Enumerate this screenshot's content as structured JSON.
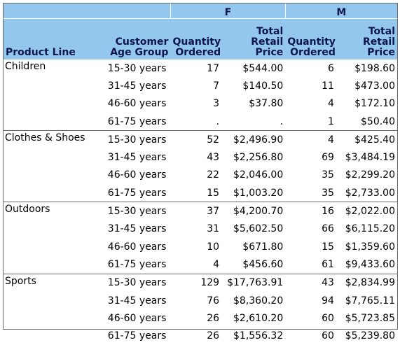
{
  "groups": {
    "female": "F",
    "male": "M"
  },
  "headers": {
    "product_line": "Product Line",
    "age_group_1": "Customer",
    "age_group_2": "Age Group",
    "qty_1": "Quantity",
    "qty_2": "Ordered",
    "price_1": "Total",
    "price_2": "Retail",
    "price_3": "Price"
  },
  "rows": [
    {
      "product": "Children",
      "age": "15-30 years",
      "f_qty": "17",
      "f_price": "$544.00",
      "m_qty": "6",
      "m_price": "$198.60"
    },
    {
      "product": "",
      "age": "31-45 years",
      "f_qty": "7",
      "f_price": "$140.50",
      "m_qty": "11",
      "m_price": "$473.00"
    },
    {
      "product": "",
      "age": "46-60 years",
      "f_qty": "3",
      "f_price": "$37.80",
      "m_qty": "4",
      "m_price": "$172.10"
    },
    {
      "product": "",
      "age": "61-75 years",
      "f_qty": ".",
      "f_price": ".",
      "m_qty": "1",
      "m_price": "$50.40"
    },
    {
      "product": "Clothes & Shoes",
      "age": "15-30 years",
      "f_qty": "52",
      "f_price": "$2,496.90",
      "m_qty": "4",
      "m_price": "$425.40"
    },
    {
      "product": "",
      "age": "31-45 years",
      "f_qty": "43",
      "f_price": "$2,256.80",
      "m_qty": "69",
      "m_price": "$3,484.19"
    },
    {
      "product": "",
      "age": "46-60 years",
      "f_qty": "22",
      "f_price": "$2,046.00",
      "m_qty": "35",
      "m_price": "$2,299.20"
    },
    {
      "product": "",
      "age": "61-75 years",
      "f_qty": "15",
      "f_price": "$1,003.20",
      "m_qty": "35",
      "m_price": "$2,733.00"
    },
    {
      "product": "Outdoors",
      "age": "15-30 years",
      "f_qty": "37",
      "f_price": "$4,200.70",
      "m_qty": "16",
      "m_price": "$2,022.00"
    },
    {
      "product": "",
      "age": "31-45 years",
      "f_qty": "31",
      "f_price": "$5,602.50",
      "m_qty": "66",
      "m_price": "$6,115.20"
    },
    {
      "product": "",
      "age": "46-60 years",
      "f_qty": "10",
      "f_price": "$671.80",
      "m_qty": "15",
      "m_price": "$1,359.60"
    },
    {
      "product": "",
      "age": "61-75 years",
      "f_qty": "4",
      "f_price": "$456.60",
      "m_qty": "61",
      "m_price": "$9,433.60"
    },
    {
      "product": "Sports",
      "age": "15-30 years",
      "f_qty": "129",
      "f_price": "$17,763.91",
      "m_qty": "43",
      "m_price": "$2,834.99"
    },
    {
      "product": "",
      "age": "31-45 years",
      "f_qty": "76",
      "f_price": "$8,360.20",
      "m_qty": "94",
      "m_price": "$7,765.11"
    },
    {
      "product": "",
      "age": "46-60 years",
      "f_qty": "26",
      "f_price": "$2,610.20",
      "m_qty": "60",
      "m_price": "$5,723.85"
    },
    {
      "product": "",
      "age": "61-75 years",
      "f_qty": "26",
      "f_price": "$1,556.32",
      "m_qty": "60",
      "m_price": "$5,239.80"
    }
  ],
  "colors": {
    "header_bg": "#93c7ee",
    "header_text": "#0d1550",
    "border": "#6a6a6a"
  }
}
